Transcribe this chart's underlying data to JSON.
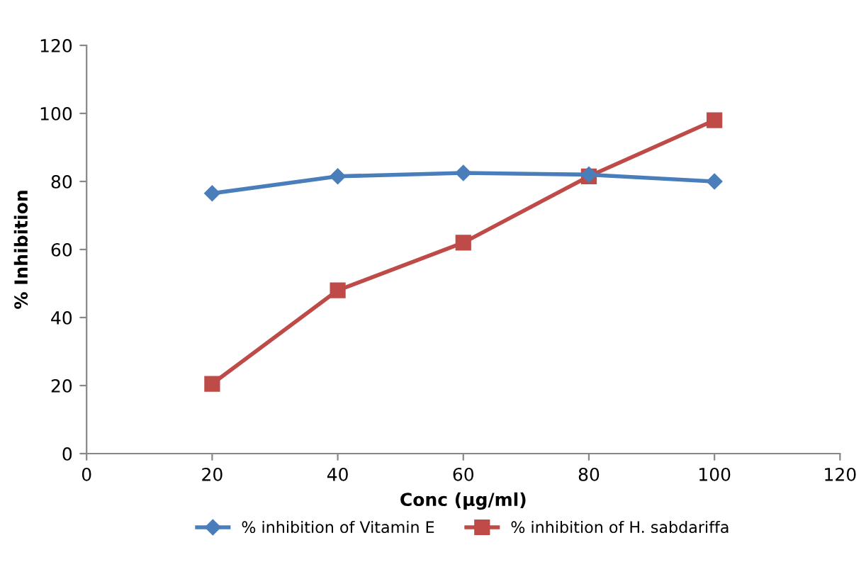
{
  "chart_data": {
    "type": "line",
    "xlabel": "Conc (µg/ml)",
    "ylabel": "% Inhibition",
    "x": [
      20,
      40,
      60,
      80,
      100
    ],
    "series": [
      {
        "name": "% inhibition of Vitamin E",
        "color": "#4a7ebb",
        "marker": "diamond",
        "values": [
          76.5,
          81.5,
          82.5,
          82,
          80
        ]
      },
      {
        "name": "% inhibition of H. sabdariffa",
        "color": "#be4b48",
        "marker": "square",
        "values": [
          20.5,
          48,
          62,
          81.5,
          98
        ]
      }
    ],
    "xlim": [
      0,
      120
    ],
    "xticks": [
      0,
      20,
      40,
      60,
      80,
      100,
      120
    ],
    "ylim": [
      0,
      120
    ],
    "yticks": [
      0,
      20,
      40,
      60,
      80,
      100,
      120
    ],
    "grid": false,
    "legend": "bottom",
    "line_style": "solid"
  }
}
